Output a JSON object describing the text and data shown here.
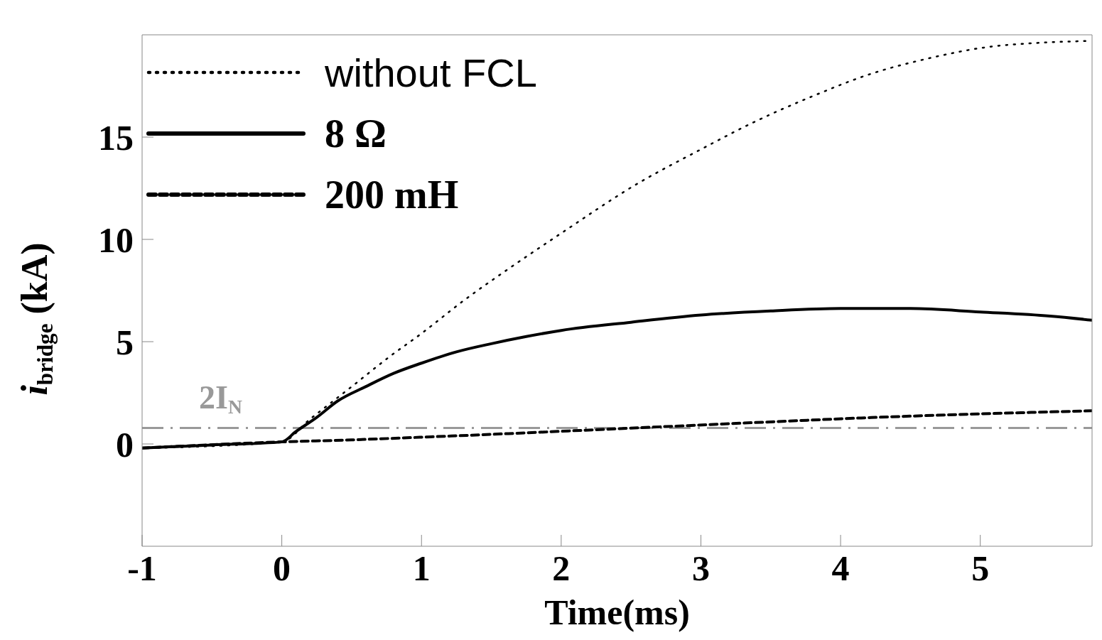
{
  "chart_data": {
    "type": "line",
    "xlabel": "Time(ms)",
    "ylabel": "i$_{bridge}$ (kA)",
    "xlim": [
      -1,
      5.8
    ],
    "xticks": [
      -1,
      0,
      1,
      2,
      3,
      4,
      5
    ],
    "ylim": [
      -5,
      20
    ],
    "yticks": [
      0,
      5,
      10,
      15
    ],
    "grid": false,
    "legend": "top left",
    "marker": "none",
    "ref_lines": [
      {
        "axis": "y",
        "value": 0.78,
        "label": "2I$_{N}$",
        "color": "#999999",
        "line_style": "dashed"
      }
    ],
    "series": [
      {
        "name": "without FCL",
        "color": "#000000",
        "line_style": "dotted",
        "x": [
          -1,
          0,
          0.2,
          0.5,
          0.77,
          1,
          1.3,
          1.61,
          2,
          2.54,
          3,
          3.37,
          3.8,
          4.22,
          4.6,
          5.05,
          5.4,
          5.78
        ],
        "values": [
          -0.2,
          0.1,
          1.2,
          2.8,
          4.26,
          5.4,
          7,
          8.5,
          10.3,
          12.7,
          14.4,
          15.7,
          17,
          18.1,
          18.8,
          19.4,
          19.6,
          19.7
        ]
      },
      {
        "name": "8 Ω",
        "color": "#000000",
        "line_style": "solid",
        "x": [
          -1,
          -0.5,
          0,
          0.1,
          0.25,
          0.4,
          0.6,
          0.8,
          1,
          1.25,
          1.5,
          1.75,
          2,
          2.5,
          3,
          3.5,
          4,
          4.5,
          5,
          5.5,
          5.8
        ],
        "values": [
          -0.2,
          -0.05,
          0.1,
          0.6,
          1.3,
          2.1,
          2.8,
          3.45,
          3.95,
          4.5,
          4.9,
          5.25,
          5.55,
          5.95,
          6.3,
          6.5,
          6.62,
          6.62,
          6.45,
          6.25,
          6.05
        ]
      },
      {
        "name": "200 mH",
        "color": "#000000",
        "line_style": "dashed",
        "x": [
          -1,
          0,
          0.5,
          1,
          1.5,
          2,
          2.75,
          3.5,
          4.22,
          5,
          5.8
        ],
        "values": [
          -0.2,
          0.1,
          0.2,
          0.33,
          0.47,
          0.62,
          0.85,
          1.08,
          1.29,
          1.47,
          1.62
        ]
      }
    ]
  }
}
